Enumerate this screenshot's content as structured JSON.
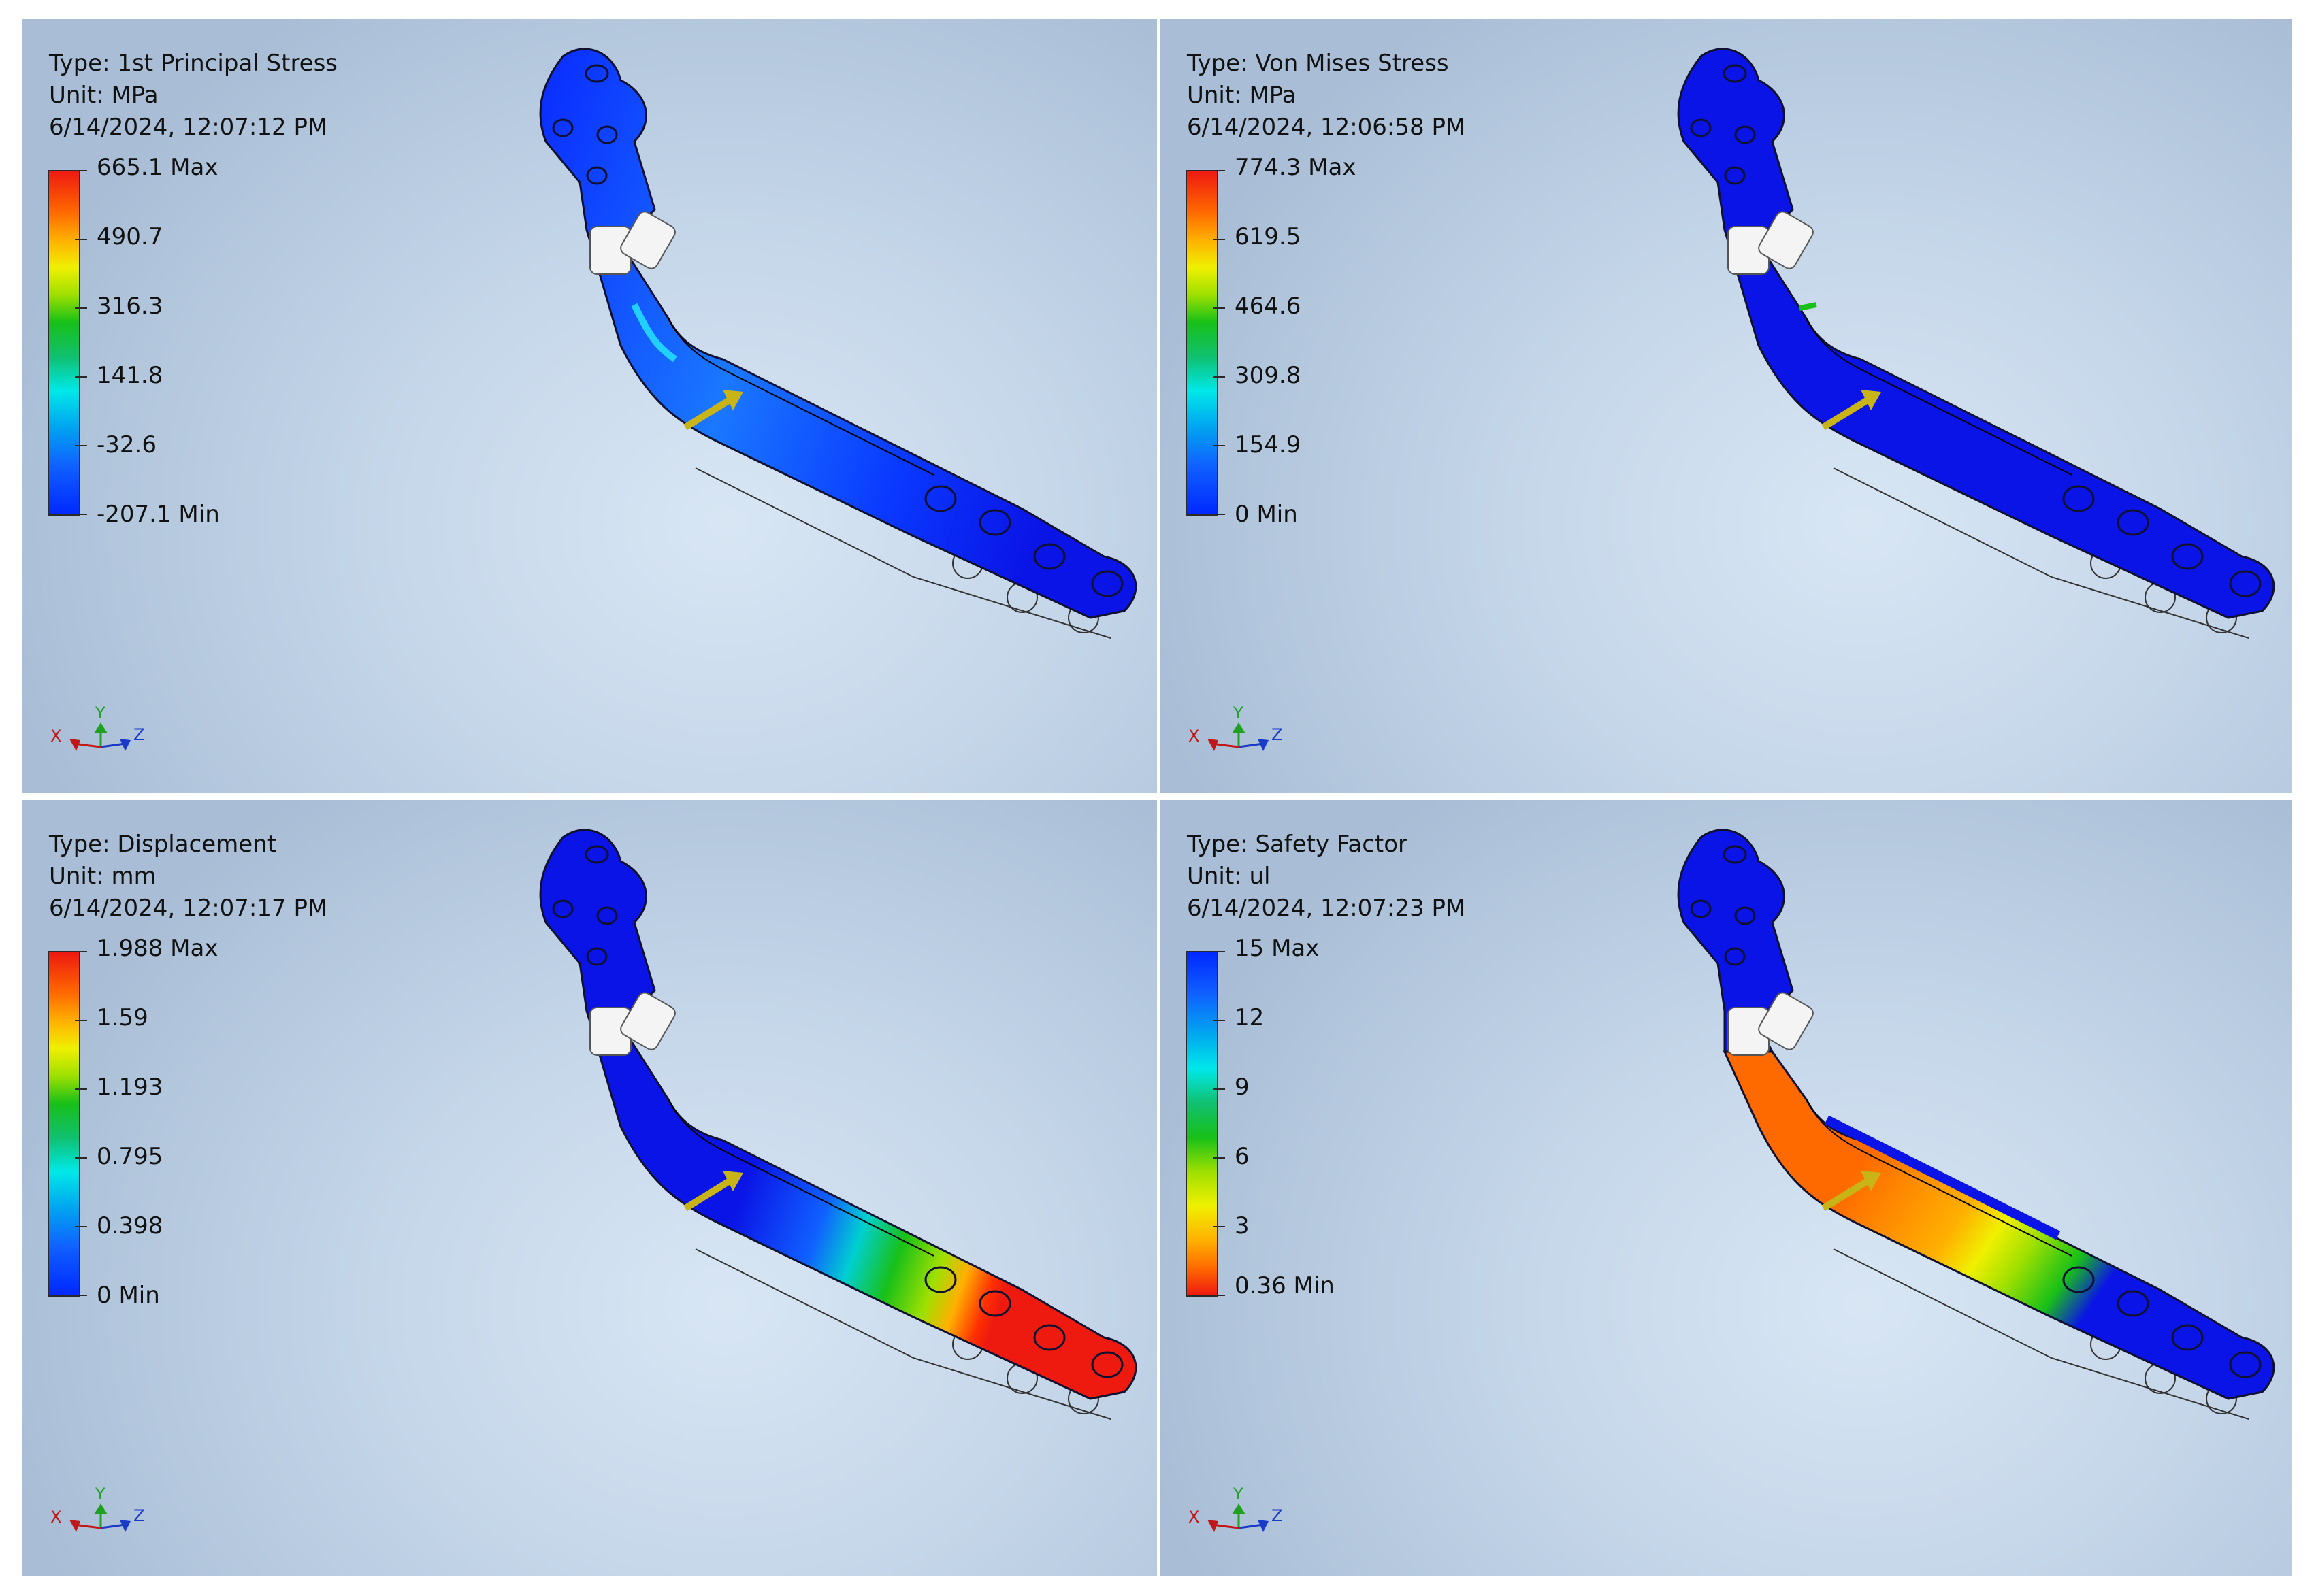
{
  "viewports": [
    {
      "type_label": "Type: 1st Principal Stress",
      "unit_label": "Unit: MPa",
      "timestamp": "6/14/2024, 12:07:12 PM",
      "scale": [
        "665.1 Max",
        "490.7",
        "316.3",
        "141.8",
        "-32.6",
        "-207.1 Min"
      ],
      "colormap": "red-to-blue"
    },
    {
      "type_label": "Type: Von Mises Stress",
      "unit_label": "Unit: MPa",
      "timestamp": "6/14/2024, 12:06:58 PM",
      "scale": [
        "774.3 Max",
        "619.5",
        "464.6",
        "309.8",
        "154.9",
        "0 Min"
      ],
      "colormap": "red-to-blue"
    },
    {
      "type_label": "Type: Displacement",
      "unit_label": "Unit: mm",
      "timestamp": "6/14/2024, 12:07:17 PM",
      "scale": [
        "1.988 Max",
        "1.59",
        "1.193",
        "0.795",
        "0.398",
        "0 Min"
      ],
      "colormap": "red-to-blue"
    },
    {
      "type_label": "Type: Safety Factor",
      "unit_label": "Unit: ul",
      "timestamp": "6/14/2024, 12:07:23 PM",
      "scale": [
        "15 Max",
        "12",
        "9",
        "6",
        "3",
        "0.36 Min"
      ],
      "colormap": "blue-to-red"
    }
  ],
  "triad": {
    "x": "X",
    "y": "Y",
    "z": "Z"
  },
  "colors": {
    "part_blue": "#0a14e6",
    "load_arrow": "#c8b417",
    "max_red": "#ee1a10",
    "min_blue": "#0028ff"
  }
}
